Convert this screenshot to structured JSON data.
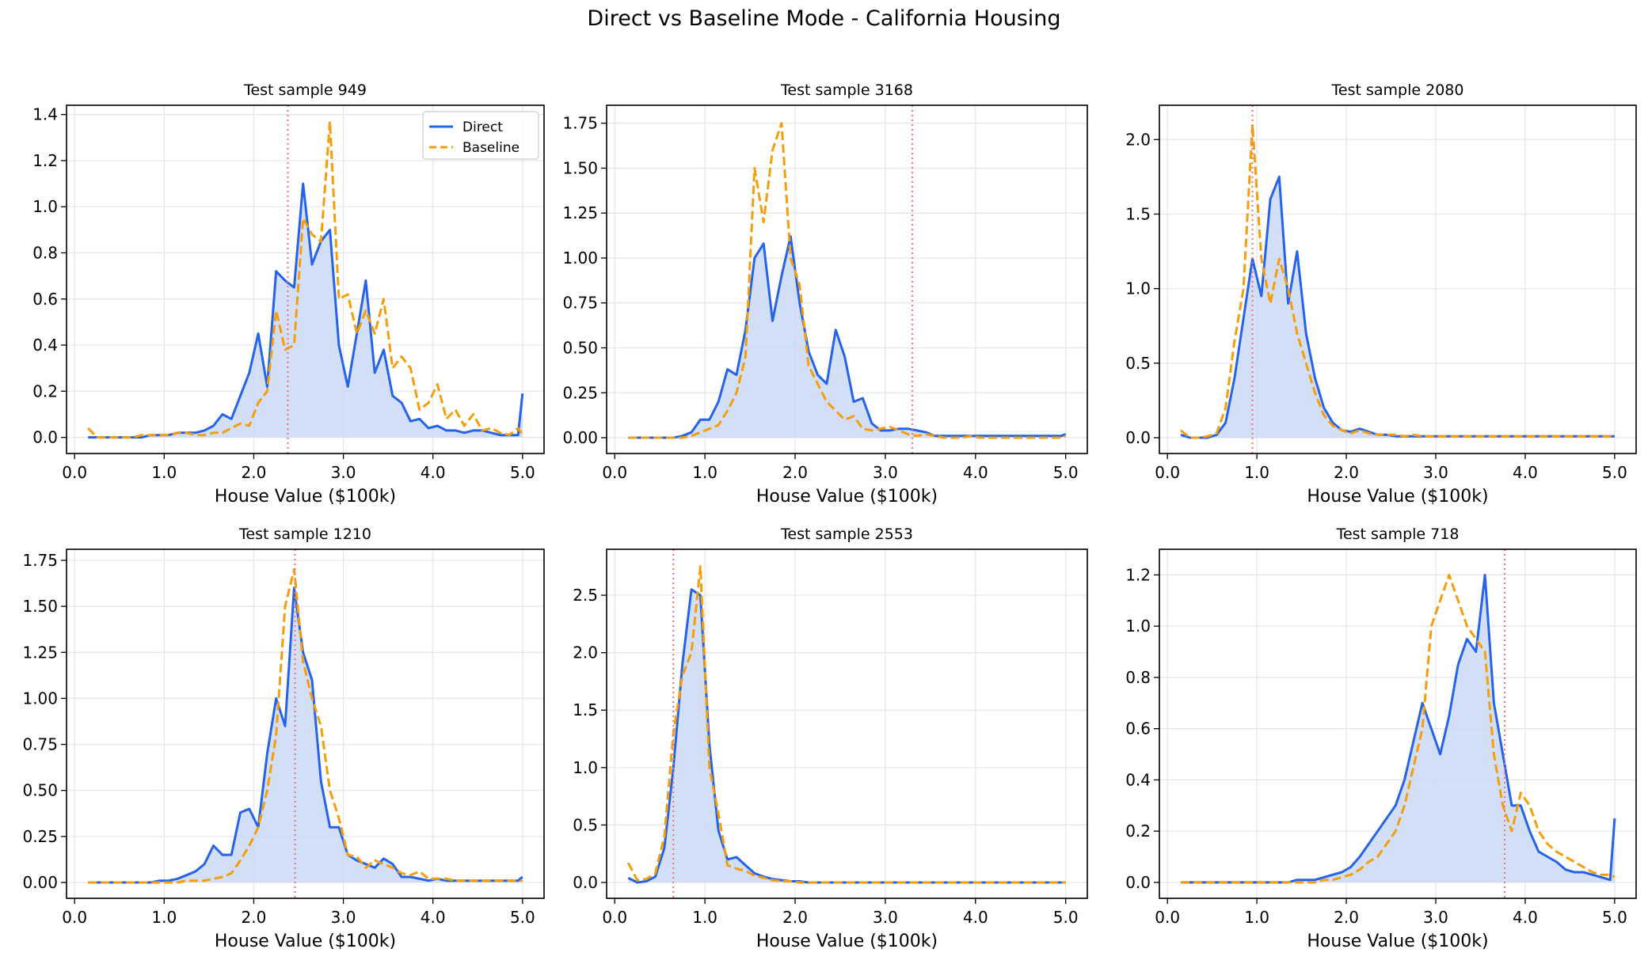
{
  "title": "Direct vs Baseline Mode - California Housing",
  "colors": {
    "direct": "#2563eb",
    "baseline": "#f59e0b",
    "fill": "#cbd9f6",
    "true_value": "#f87171",
    "grid": "#e5e5e5"
  },
  "legend": {
    "entries": [
      "Direct",
      "Baseline"
    ],
    "placement": "upper right",
    "panel": 0
  },
  "chart_data": [
    {
      "type": "line",
      "title": "Test sample 949",
      "xlabel": "House Value ($100k)",
      "ylabel": "",
      "xlim": [
        -0.09,
        5.24
      ],
      "ylim": [
        -0.07,
        1.44
      ],
      "xticks": [
        "0.0",
        "1.0",
        "2.0",
        "3.0",
        "4.0",
        "5.0"
      ],
      "yticks": [
        "0.0",
        "0.2",
        "0.4",
        "0.6",
        "0.8",
        "1.0",
        "1.2",
        "1.4"
      ],
      "grid": true,
      "true_value": 2.38,
      "x": [
        0.15,
        0.25,
        0.35,
        0.45,
        0.55,
        0.65,
        0.75,
        0.85,
        0.95,
        1.05,
        1.15,
        1.25,
        1.35,
        1.45,
        1.55,
        1.65,
        1.75,
        1.85,
        1.95,
        2.05,
        2.15,
        2.25,
        2.35,
        2.45,
        2.55,
        2.65,
        2.75,
        2.85,
        2.95,
        3.05,
        3.15,
        3.25,
        3.35,
        3.45,
        3.55,
        3.65,
        3.75,
        3.85,
        3.95,
        4.05,
        4.15,
        4.25,
        4.35,
        4.45,
        4.55,
        4.65,
        4.75,
        4.85,
        4.95,
        5.0
      ],
      "series": [
        {
          "name": "Direct",
          "values": [
            0,
            0,
            0,
            0,
            0,
            0,
            0,
            0.01,
            0.01,
            0.01,
            0.02,
            0.02,
            0.02,
            0.03,
            0.05,
            0.1,
            0.08,
            0.18,
            0.28,
            0.45,
            0.22,
            0.72,
            0.68,
            0.65,
            1.1,
            0.75,
            0.85,
            0.9,
            0.4,
            0.22,
            0.45,
            0.68,
            0.28,
            0.38,
            0.18,
            0.15,
            0.07,
            0.08,
            0.04,
            0.05,
            0.03,
            0.03,
            0.02,
            0.03,
            0.03,
            0.02,
            0.01,
            0.01,
            0.01,
            0.19
          ]
        },
        {
          "name": "Baseline",
          "values": [
            0.04,
            0,
            0,
            0,
            0,
            0,
            0.01,
            0.01,
            0.01,
            0.01,
            0.02,
            0.02,
            0.01,
            0.01,
            0.02,
            0.02,
            0.04,
            0.06,
            0.05,
            0.15,
            0.2,
            0.55,
            0.38,
            0.4,
            0.95,
            0.88,
            0.85,
            1.37,
            0.6,
            0.62,
            0.45,
            0.55,
            0.45,
            0.6,
            0.3,
            0.35,
            0.3,
            0.12,
            0.15,
            0.23,
            0.08,
            0.12,
            0.05,
            0.1,
            0.03,
            0.04,
            0.02,
            0.01,
            0.04,
            0.01
          ]
        }
      ]
    },
    {
      "type": "line",
      "title": "Test sample 3168",
      "xlabel": "House Value ($100k)",
      "ylabel": "",
      "xlim": [
        -0.09,
        5.24
      ],
      "ylim": [
        -0.088,
        1.85
      ],
      "xticks": [
        "0.0",
        "1.0",
        "2.0",
        "3.0",
        "4.0",
        "5.0"
      ],
      "yticks": [
        "0.00",
        "0.25",
        "0.50",
        "0.75",
        "1.00",
        "1.25",
        "1.50",
        "1.75"
      ],
      "grid": true,
      "true_value": 3.3,
      "x": [
        0.15,
        0.25,
        0.35,
        0.45,
        0.55,
        0.65,
        0.75,
        0.85,
        0.95,
        1.05,
        1.15,
        1.25,
        1.35,
        1.45,
        1.55,
        1.65,
        1.75,
        1.85,
        1.95,
        2.05,
        2.15,
        2.25,
        2.35,
        2.45,
        2.55,
        2.65,
        2.75,
        2.85,
        2.95,
        3.05,
        3.15,
        3.25,
        3.35,
        3.45,
        3.55,
        3.65,
        3.75,
        3.85,
        3.95,
        4.05,
        4.15,
        4.25,
        4.35,
        4.45,
        4.55,
        4.65,
        4.75,
        4.85,
        4.95,
        5.0
      ],
      "series": [
        {
          "name": "Direct",
          "values": [
            0,
            0,
            0,
            0,
            0,
            0,
            0.01,
            0.03,
            0.1,
            0.1,
            0.2,
            0.38,
            0.35,
            0.6,
            1.0,
            1.08,
            0.65,
            0.9,
            1.12,
            0.75,
            0.48,
            0.35,
            0.3,
            0.6,
            0.45,
            0.2,
            0.22,
            0.08,
            0.04,
            0.04,
            0.05,
            0.05,
            0.04,
            0.03,
            0.01,
            0.01,
            0.01,
            0.01,
            0.01,
            0.01,
            0.01,
            0.01,
            0.01,
            0.01,
            0.01,
            0.01,
            0.01,
            0.01,
            0.01,
            0.02
          ]
        },
        {
          "name": "Baseline",
          "values": [
            0,
            0,
            0,
            0,
            0,
            0,
            0,
            0.01,
            0.03,
            0.05,
            0.07,
            0.15,
            0.25,
            0.45,
            1.5,
            1.2,
            1.6,
            1.75,
            1.0,
            0.85,
            0.4,
            0.3,
            0.2,
            0.15,
            0.1,
            0.12,
            0.05,
            0.04,
            0.05,
            0.06,
            0.04,
            0.02,
            0.01,
            0.02,
            0.01,
            0,
            0,
            0,
            0.01,
            0,
            0,
            0,
            0,
            0,
            0,
            0,
            0,
            0,
            0,
            0.01
          ]
        }
      ]
    },
    {
      "type": "line",
      "title": "Test sample 2080",
      "xlabel": "House Value ($100k)",
      "ylabel": "",
      "xlim": [
        -0.09,
        5.24
      ],
      "ylim": [
        -0.106,
        2.23
      ],
      "xticks": [
        "0.0",
        "1.0",
        "2.0",
        "3.0",
        "4.0",
        "5.0"
      ],
      "yticks": [
        "0.0",
        "0.5",
        "1.0",
        "1.5",
        "2.0"
      ],
      "grid": true,
      "true_value": 0.95,
      "x": [
        0.15,
        0.25,
        0.35,
        0.45,
        0.55,
        0.65,
        0.75,
        0.85,
        0.95,
        1.05,
        1.15,
        1.25,
        1.35,
        1.45,
        1.55,
        1.65,
        1.75,
        1.85,
        1.95,
        2.05,
        2.15,
        2.25,
        2.35,
        2.45,
        2.55,
        2.65,
        2.75,
        2.85,
        2.95,
        3.05,
        3.15,
        3.25,
        3.35,
        3.45,
        3.55,
        3.65,
        3.75,
        3.85,
        3.95,
        4.05,
        4.15,
        4.25,
        4.35,
        4.45,
        4.55,
        4.65,
        4.75,
        4.85,
        4.95,
        5.0
      ],
      "series": [
        {
          "name": "Direct",
          "values": [
            0.02,
            0,
            0,
            0,
            0.02,
            0.1,
            0.4,
            0.8,
            1.2,
            0.95,
            1.6,
            1.75,
            0.9,
            1.25,
            0.7,
            0.4,
            0.2,
            0.1,
            0.05,
            0.04,
            0.06,
            0.04,
            0.02,
            0.02,
            0.01,
            0.01,
            0.01,
            0.01,
            0.01,
            0.01,
            0.01,
            0.01,
            0.01,
            0.01,
            0.01,
            0.01,
            0.01,
            0.01,
            0.01,
            0.01,
            0.01,
            0.01,
            0.01,
            0.01,
            0.01,
            0.01,
            0.01,
            0.01,
            0.01,
            0.01
          ]
        },
        {
          "name": "Baseline",
          "values": [
            0.05,
            0,
            0,
            0.01,
            0.03,
            0.2,
            0.65,
            1.0,
            2.1,
            1.2,
            0.9,
            1.2,
            1.0,
            0.7,
            0.5,
            0.3,
            0.15,
            0.08,
            0.05,
            0.03,
            0.05,
            0.03,
            0.02,
            0.02,
            0.02,
            0.01,
            0.02,
            0.01,
            0.01,
            0.01,
            0.01,
            0.01,
            0.01,
            0.01,
            0.01,
            0.01,
            0.01,
            0.01,
            0.01,
            0.01,
            0.01,
            0.01,
            0.01,
            0.01,
            0.01,
            0.01,
            0.01,
            0.01,
            0.01,
            0.01
          ]
        }
      ]
    },
    {
      "type": "line",
      "title": "Test sample 1210",
      "xlabel": "House Value ($100k)",
      "ylabel": "",
      "xlim": [
        -0.09,
        5.24
      ],
      "ylim": [
        -0.086,
        1.81
      ],
      "xticks": [
        "0.0",
        "1.0",
        "2.0",
        "3.0",
        "4.0",
        "5.0"
      ],
      "yticks": [
        "0.00",
        "0.25",
        "0.50",
        "0.75",
        "1.00",
        "1.25",
        "1.50",
        "1.75"
      ],
      "grid": true,
      "true_value": 2.46,
      "x": [
        0.15,
        0.25,
        0.35,
        0.45,
        0.55,
        0.65,
        0.75,
        0.85,
        0.95,
        1.05,
        1.15,
        1.25,
        1.35,
        1.45,
        1.55,
        1.65,
        1.75,
        1.85,
        1.95,
        2.05,
        2.15,
        2.25,
        2.35,
        2.45,
        2.55,
        2.65,
        2.75,
        2.85,
        2.95,
        3.05,
        3.15,
        3.25,
        3.35,
        3.45,
        3.55,
        3.65,
        3.75,
        3.85,
        3.95,
        4.05,
        4.15,
        4.25,
        4.35,
        4.45,
        4.55,
        4.65,
        4.75,
        4.85,
        4.95,
        5.0
      ],
      "series": [
        {
          "name": "Direct",
          "values": [
            0,
            0,
            0,
            0,
            0,
            0,
            0,
            0,
            0.01,
            0.01,
            0.02,
            0.04,
            0.06,
            0.1,
            0.2,
            0.15,
            0.15,
            0.38,
            0.4,
            0.3,
            0.7,
            1.0,
            0.85,
            1.6,
            1.25,
            1.1,
            0.55,
            0.3,
            0.3,
            0.15,
            0.12,
            0.1,
            0.08,
            0.13,
            0.1,
            0.03,
            0.03,
            0.02,
            0.01,
            0.02,
            0.01,
            0.01,
            0.01,
            0.01,
            0.01,
            0.01,
            0.01,
            0.01,
            0.01,
            0.03
          ]
        },
        {
          "name": "Baseline",
          "values": [
            0,
            0,
            0,
            0,
            0,
            0,
            0,
            0,
            0,
            0,
            0,
            0.01,
            0.01,
            0.01,
            0.02,
            0.03,
            0.05,
            0.12,
            0.2,
            0.3,
            0.5,
            0.8,
            1.5,
            1.7,
            1.2,
            1.0,
            0.85,
            0.5,
            0.35,
            0.15,
            0.14,
            0.08,
            0.12,
            0.1,
            0.08,
            0.05,
            0.04,
            0.06,
            0.02,
            0.02,
            0.02,
            0.01,
            0.01,
            0.01,
            0.01,
            0.01,
            0.01,
            0.01,
            0.01,
            0.01
          ]
        }
      ]
    },
    {
      "type": "line",
      "title": "Test sample 2553",
      "xlabel": "House Value ($100k)",
      "ylabel": "",
      "xlim": [
        -0.09,
        5.24
      ],
      "ylim": [
        -0.138,
        2.9
      ],
      "xticks": [
        "0.0",
        "1.0",
        "2.0",
        "3.0",
        "4.0",
        "5.0"
      ],
      "yticks": [
        "0.0",
        "0.5",
        "1.0",
        "1.5",
        "2.0",
        "2.5"
      ],
      "grid": true,
      "true_value": 0.65,
      "x": [
        0.15,
        0.25,
        0.35,
        0.45,
        0.55,
        0.65,
        0.75,
        0.85,
        0.95,
        1.05,
        1.15,
        1.25,
        1.35,
        1.45,
        1.55,
        1.65,
        1.75,
        1.85,
        1.95,
        2.05,
        2.15,
        2.25,
        2.35,
        2.45,
        2.55,
        2.65,
        2.75,
        2.85,
        2.95,
        3.05,
        3.15,
        3.25,
        3.35,
        3.45,
        3.55,
        3.65,
        3.75,
        3.85,
        3.95,
        4.05,
        4.15,
        4.25,
        4.35,
        4.45,
        4.55,
        4.65,
        4.75,
        4.85,
        4.95,
        5.0
      ],
      "series": [
        {
          "name": "Direct",
          "values": [
            0.04,
            0,
            0.01,
            0.05,
            0.3,
            1.0,
            1.9,
            2.55,
            2.5,
            1.2,
            0.45,
            0.2,
            0.22,
            0.15,
            0.08,
            0.05,
            0.03,
            0.02,
            0.01,
            0.01,
            0,
            0,
            0,
            0,
            0,
            0,
            0,
            0,
            0,
            0,
            0,
            0,
            0,
            0,
            0,
            0,
            0,
            0,
            0,
            0,
            0,
            0,
            0,
            0,
            0,
            0,
            0,
            0,
            0,
            0
          ]
        },
        {
          "name": "Baseline",
          "values": [
            0.17,
            0.02,
            0.03,
            0.08,
            0.4,
            1.3,
            1.8,
            2.0,
            2.75,
            1.0,
            0.6,
            0.15,
            0.12,
            0.1,
            0.06,
            0.04,
            0.02,
            0.01,
            0.01,
            0,
            0,
            0,
            0,
            0,
            0,
            0,
            0,
            0,
            0,
            0,
            0,
            0,
            0,
            0,
            0,
            0,
            0,
            0,
            0,
            0,
            0,
            0,
            0,
            0,
            0,
            0,
            0,
            0,
            0,
            0
          ]
        }
      ]
    },
    {
      "type": "line",
      "title": "Test sample 718",
      "xlabel": "House Value ($100k)",
      "ylabel": "",
      "xlim": [
        -0.09,
        5.24
      ],
      "ylim": [
        -0.062,
        1.3
      ],
      "xticks": [
        "0.0",
        "1.0",
        "2.0",
        "3.0",
        "4.0",
        "5.0"
      ],
      "yticks": [
        "0.0",
        "0.2",
        "0.4",
        "0.6",
        "0.8",
        "1.0",
        "1.2"
      ],
      "grid": true,
      "true_value": 3.77,
      "x": [
        0.15,
        0.25,
        0.35,
        0.45,
        0.55,
        0.65,
        0.75,
        0.85,
        0.95,
        1.05,
        1.15,
        1.25,
        1.35,
        1.45,
        1.55,
        1.65,
        1.75,
        1.85,
        1.95,
        2.05,
        2.15,
        2.25,
        2.35,
        2.45,
        2.55,
        2.65,
        2.75,
        2.85,
        2.95,
        3.05,
        3.15,
        3.25,
        3.35,
        3.45,
        3.55,
        3.65,
        3.75,
        3.85,
        3.95,
        4.05,
        4.15,
        4.25,
        4.35,
        4.45,
        4.55,
        4.65,
        4.75,
        4.85,
        4.95,
        5.0
      ],
      "series": [
        {
          "name": "Direct",
          "values": [
            0,
            0,
            0,
            0,
            0,
            0,
            0,
            0,
            0,
            0,
            0,
            0,
            0,
            0.01,
            0.01,
            0.01,
            0.02,
            0.03,
            0.04,
            0.06,
            0.1,
            0.15,
            0.2,
            0.25,
            0.3,
            0.4,
            0.55,
            0.7,
            0.6,
            0.5,
            0.65,
            0.85,
            0.95,
            0.9,
            1.2,
            0.7,
            0.5,
            0.3,
            0.3,
            0.2,
            0.12,
            0.1,
            0.08,
            0.05,
            0.04,
            0.04,
            0.03,
            0.02,
            0.01,
            0.25
          ]
        },
        {
          "name": "Baseline",
          "values": [
            0,
            0,
            0,
            0,
            0,
            0,
            0,
            0,
            0,
            0,
            0,
            0,
            0,
            0,
            0,
            0,
            0.01,
            0.01,
            0.02,
            0.03,
            0.05,
            0.08,
            0.1,
            0.15,
            0.2,
            0.3,
            0.45,
            0.6,
            1.0,
            1.1,
            1.2,
            1.1,
            1.0,
            0.95,
            0.9,
            0.5,
            0.3,
            0.2,
            0.35,
            0.3,
            0.2,
            0.15,
            0.12,
            0.1,
            0.08,
            0.06,
            0.04,
            0.03,
            0.03,
            0.02
          ]
        }
      ]
    }
  ]
}
